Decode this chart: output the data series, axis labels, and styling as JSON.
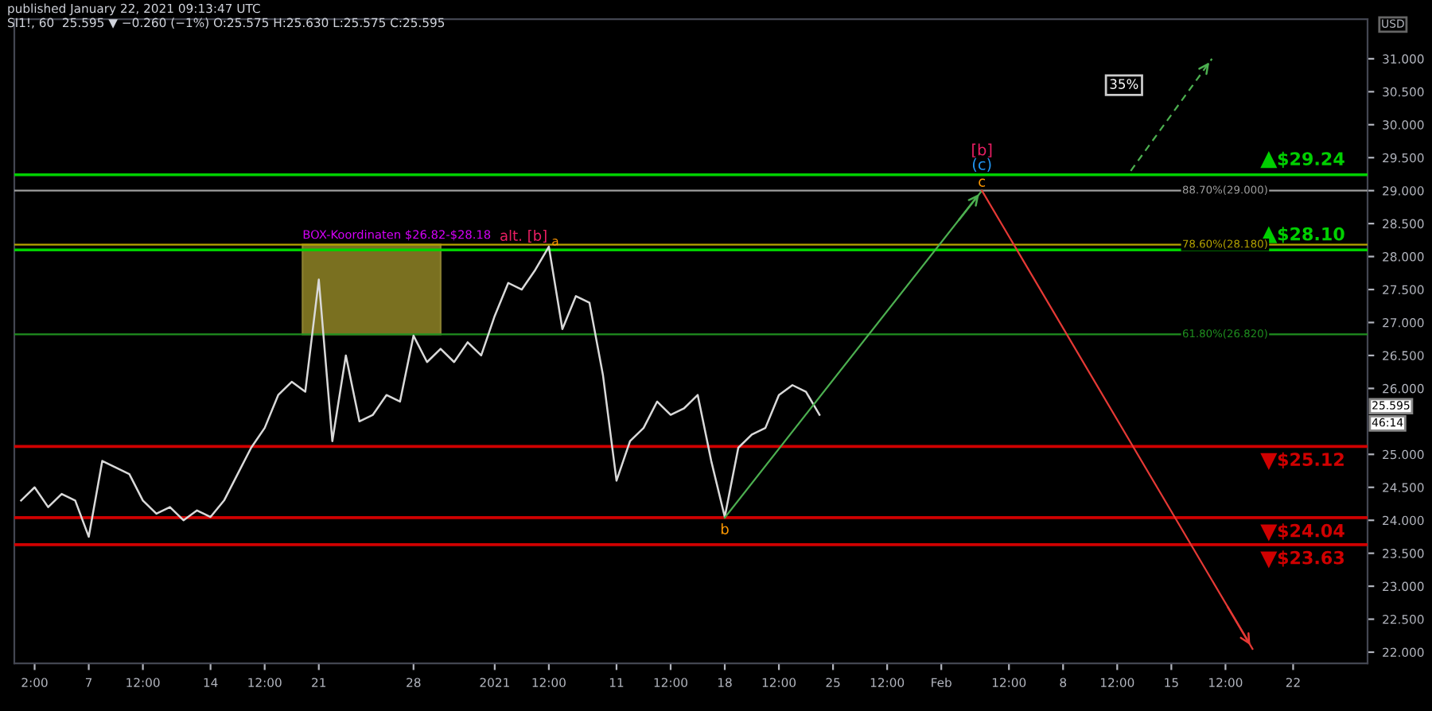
{
  "chart_data": {
    "type": "line",
    "title": "published January 22, 2021 09:13:47 UTC",
    "subtitle": "SI1!, 60  25.595 ▼ −0.260 (−1%) O:25.575 H:25.630 L:25.575 C:25.595",
    "ylabel": "USD",
    "categories": [
      null,
      "2:00",
      null,
      null,
      null,
      "7",
      null,
      null,
      null,
      "12:00",
      null,
      null,
      null,
      null,
      "14",
      null,
      null,
      null,
      "12:00",
      null,
      null,
      null,
      "21",
      null,
      null,
      null,
      null,
      null,
      null,
      "28",
      null,
      null,
      null,
      null,
      null,
      "2021",
      null,
      null,
      null,
      "12:00",
      null,
      null,
      null,
      null,
      "11",
      null,
      null,
      null,
      "12:00",
      null,
      null,
      null,
      "18",
      null,
      null,
      null,
      "12:00",
      null,
      null,
      null,
      "25",
      null,
      null,
      null,
      "12:00",
      null,
      null,
      null,
      "Feb",
      null,
      null,
      null,
      null,
      "12:00",
      null,
      null,
      null,
      "8",
      null,
      null,
      null,
      "12:00",
      null,
      null,
      null,
      "15",
      null,
      null,
      null,
      "12:00",
      null,
      null,
      null,
      null,
      "22",
      null,
      null,
      null,
      null,
      null
    ],
    "series": [
      {
        "color": "#d9d9d9",
        "values": [
          24.3,
          24.5,
          24.2,
          24.4,
          24.3,
          23.75,
          24.9,
          24.8,
          24.7,
          24.3,
          24.1,
          24.2,
          24.0,
          24.15,
          24.05,
          24.3,
          24.7,
          25.1,
          25.4,
          25.9,
          26.1,
          25.95,
          27.65,
          25.2,
          26.5,
          25.5,
          25.6,
          25.9,
          25.8,
          26.8,
          26.4,
          26.6,
          26.4,
          26.7,
          26.5,
          27.1,
          27.6,
          27.5,
          27.8,
          28.15,
          26.9,
          27.4,
          27.3,
          26.2,
          24.6,
          25.2,
          25.4,
          25.8,
          25.6,
          25.7,
          25.9,
          24.9,
          24.05,
          25.1,
          25.3,
          25.4,
          25.9,
          26.05,
          25.95,
          25.6,
          null,
          null,
          null,
          null,
          null,
          null,
          null,
          null,
          null,
          null,
          null,
          null,
          null,
          null,
          null,
          null,
          null,
          null,
          null,
          null,
          null,
          null,
          null,
          null,
          null,
          null,
          null,
          null,
          null,
          null,
          null,
          null,
          null,
          null,
          null,
          null,
          null,
          null,
          null,
          null
        ]
      },
      {
        "color": "#4caf50",
        "values": [
          null,
          null,
          null,
          null,
          null,
          null,
          null,
          null,
          null,
          null,
          null,
          null,
          null,
          null,
          null,
          null,
          null,
          null,
          null,
          null,
          null,
          null,
          null,
          null,
          null,
          null,
          null,
          null,
          null,
          null,
          null,
          null,
          null,
          null,
          null,
          null,
          null,
          null,
          null,
          null,
          null,
          null,
          null,
          null,
          null,
          null,
          null,
          null,
          null,
          null,
          null,
          null,
          24.04,
          null,
          null,
          null,
          null,
          null,
          null,
          null,
          null,
          null,
          null,
          null,
          null,
          null,
          null,
          null,
          null,
          null,
          null,
          29.0,
          null,
          null,
          null,
          null,
          null,
          null,
          null,
          null,
          null,
          null,
          null,
          null,
          null,
          null,
          null,
          null,
          null,
          null,
          null,
          null,
          null,
          null,
          null,
          null,
          null,
          null,
          null,
          null
        ]
      },
      {
        "color": "#e53935",
        "values": [
          null,
          null,
          null,
          null,
          null,
          null,
          null,
          null,
          null,
          null,
          null,
          null,
          null,
          null,
          null,
          null,
          null,
          null,
          null,
          null,
          null,
          null,
          null,
          null,
          null,
          null,
          null,
          null,
          null,
          null,
          null,
          null,
          null,
          null,
          null,
          null,
          null,
          null,
          null,
          null,
          null,
          null,
          null,
          null,
          null,
          null,
          null,
          null,
          null,
          null,
          null,
          null,
          null,
          null,
          null,
          null,
          null,
          null,
          null,
          null,
          null,
          null,
          null,
          null,
          null,
          null,
          null,
          null,
          null,
          null,
          null,
          29.0,
          null,
          null,
          null,
          null,
          null,
          null,
          null,
          null,
          null,
          null,
          null,
          null,
          null,
          null,
          null,
          null,
          null,
          null,
          null,
          22.05,
          null,
          null,
          null,
          null,
          null,
          null,
          null,
          null
        ]
      },
      {
        "color": "#4caf50",
        "line_style": "dashed",
        "values": [
          null,
          null,
          null,
          null,
          null,
          null,
          null,
          null,
          null,
          null,
          null,
          null,
          null,
          null,
          null,
          null,
          null,
          null,
          null,
          null,
          null,
          null,
          null,
          null,
          null,
          null,
          null,
          null,
          null,
          null,
          null,
          null,
          null,
          null,
          null,
          null,
          null,
          null,
          null,
          null,
          null,
          null,
          null,
          null,
          null,
          null,
          null,
          null,
          null,
          null,
          null,
          null,
          null,
          null,
          null,
          null,
          null,
          null,
          null,
          null,
          null,
          null,
          null,
          null,
          null,
          null,
          null,
          null,
          null,
          null,
          null,
          null,
          null,
          null,
          null,
          null,
          null,
          null,
          null,
          null,
          null,
          null,
          29.3,
          null,
          null,
          null,
          null,
          null,
          31.0,
          null,
          null,
          null,
          null,
          null,
          null,
          null,
          null,
          null,
          null,
          null
        ]
      }
    ],
    "ylim": [
      21.83,
      31.6
    ],
    "yticks": [
      {
        "value": 22,
        "label": "22.000"
      },
      {
        "value": 22.5,
        "label": "22.500"
      },
      {
        "value": 23,
        "label": "23.000"
      },
      {
        "value": 23.5,
        "label": "23.500"
      },
      {
        "value": 24,
        "label": "24.000"
      },
      {
        "value": 24.5,
        "label": "24.500"
      },
      {
        "value": 25,
        "label": "25.000"
      },
      {
        "value": 26,
        "label": "26.000"
      },
      {
        "value": 26.5,
        "label": "26.500"
      },
      {
        "value": 27,
        "label": "27.000"
      },
      {
        "value": 27.5,
        "label": "27.500"
      },
      {
        "value": 28,
        "label": "28.000"
      },
      {
        "value": 28.5,
        "label": "28.500"
      },
      {
        "value": 29,
        "label": "29.000"
      },
      {
        "value": 29.5,
        "label": "29.500"
      },
      {
        "value": 30,
        "label": "30.000"
      },
      {
        "value": 30.5,
        "label": "30.500"
      },
      {
        "value": 31,
        "label": "31.000"
      }
    ],
    "ref_lines": [
      {
        "axis": "y",
        "value": 29.24,
        "label": "$29.24",
        "color": "#00d000"
      },
      {
        "axis": "y",
        "value": 28.1,
        "label": "$28.10",
        "color": "#00d000"
      },
      {
        "axis": "y",
        "value": 25.12,
        "label": "$25.12",
        "color": "#d00000"
      },
      {
        "axis": "y",
        "value": 24.04,
        "label": "$24.04",
        "color": "#d00000"
      },
      {
        "axis": "y",
        "value": 23.63,
        "label": "$23.63",
        "color": "#d00000"
      },
      {
        "axis": "y",
        "value": 29.0,
        "label": "88.70%(29.000)",
        "color": "#9e9e9e"
      },
      {
        "axis": "y",
        "value": 28.18,
        "label": "78.60%(28.180)",
        "color": "#b5a300"
      },
      {
        "axis": "y",
        "value": 26.82,
        "label": "61.80%(26.820)",
        "color": "#1f8f1f"
      }
    ],
    "bands": [
      {
        "axis": "y",
        "from": 26.82,
        "to": 28.18,
        "label": "BOX-Koordinaten $26.82-$28.18",
        "color": "#7a7020"
      }
    ],
    "annotations": [
      "alt. [b]",
      "a",
      "[b]",
      "(c)",
      "c",
      "b",
      "35%",
      "25.595",
      "46:14"
    ],
    "grid": false,
    "legend": false
  }
}
